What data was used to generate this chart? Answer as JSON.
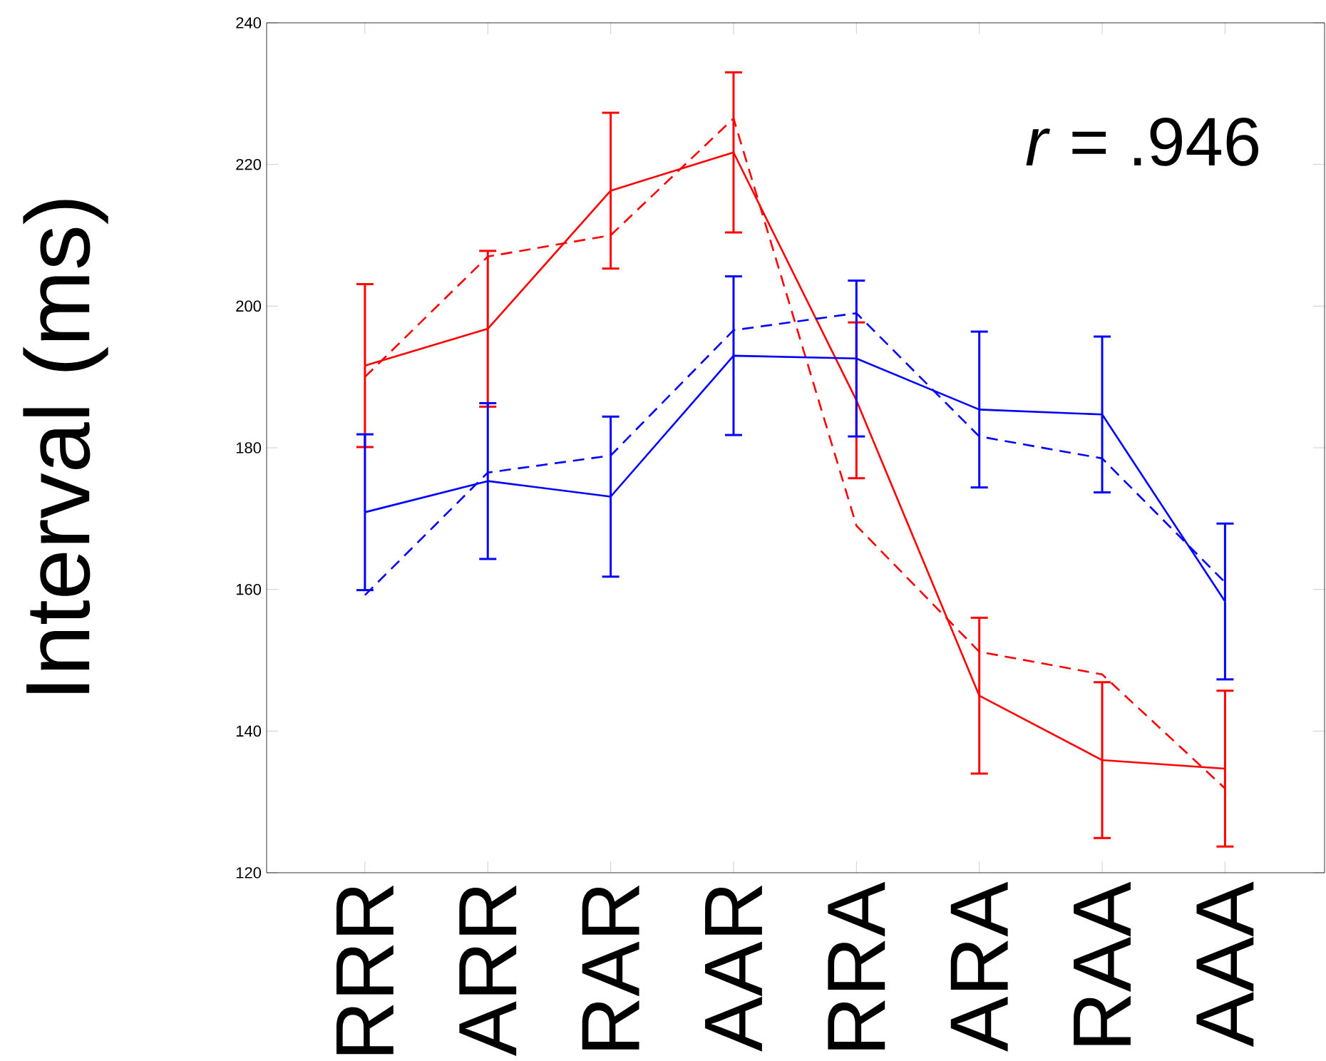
{
  "chart_data": {
    "type": "line",
    "ylabel": "Interval (ms)",
    "annotations": [
      "*r* = .946"
    ],
    "categories": [
      "RRR",
      "ARR",
      "RAR",
      "AAR",
      "RRA",
      "ARA",
      "RAA",
      "AAA"
    ],
    "ylim": [
      120,
      240
    ],
    "yticks": [
      120,
      140,
      160,
      180,
      200,
      220,
      240
    ],
    "grid": false,
    "marker": "none",
    "tick_labels": "xy",
    "series": [
      {
        "color": "#ff0000",
        "line_style": "solid",
        "values": [
          191.6,
          196.8,
          216.3,
          221.7,
          186.7,
          145,
          135.9,
          134.7
        ],
        "errors": [
          11.5,
          11,
          11,
          11.3,
          11,
          11,
          11,
          11
        ]
      },
      {
        "color": "#ff0000",
        "line_style": "dashed",
        "values": [
          190,
          207,
          210,
          226.5,
          169,
          151.2,
          148,
          131.9
        ]
      },
      {
        "color": "#0000ff",
        "line_style": "solid",
        "values": [
          170.9,
          175.3,
          173.1,
          193,
          192.6,
          185.4,
          184.7,
          158.3
        ],
        "errors": [
          11,
          11,
          11.3,
          11.2,
          11,
          11,
          11,
          11
        ]
      },
      {
        "color": "#0000ff",
        "line_style": "dashed",
        "values": [
          159.2,
          176.5,
          178.9,
          196.6,
          199,
          181.6,
          178.5,
          161
        ]
      }
    ]
  }
}
